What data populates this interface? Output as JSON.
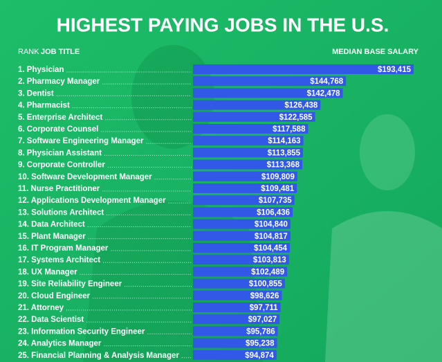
{
  "chart_data": {
    "type": "bar",
    "orientation": "horizontal",
    "title": "HIGHEST PAYING JOBS IN THE U.S.",
    "rank_header": "RANK",
    "category_header": "JOB TITLE",
    "value_header": "MEDIAN BASE SALARY",
    "categories": [
      "1. Physician",
      "2. Pharmacy Manager",
      "3. Dentist",
      "4. Pharmacist",
      "5. Enterprise Architect",
      "6. Corporate Counsel",
      "7. Software Engineering Manager",
      "8. Physician Assistant",
      "9. Corporate Controller",
      "10. Software Development Manager",
      "11. Nurse Practitioner",
      "12. Applications Development Manager",
      "13. Solutions Architect",
      "14. Data Architect",
      "15. Plant Manager",
      "16. IT Program Manager",
      "17. Systems Architect",
      "18. UX Manager",
      "19. Site Reliability Engineer",
      "20. Cloud Engineer",
      "21. Attorney",
      "22. Data Scientist",
      "23. Information Security Engineer",
      "24. Analytics Manager",
      "25. Financial Planning & Analysis Manager"
    ],
    "values": [
      193415,
      144768,
      142478,
      126438,
      122585,
      117588,
      114163,
      113855,
      113368,
      109809,
      109481,
      107735,
      106436,
      104840,
      104817,
      104454,
      103813,
      102489,
      100855,
      98626,
      97711,
      97027,
      95786,
      95238,
      94874
    ],
    "value_labels": [
      "$193,415",
      "$144,768",
      "$142,478",
      "$126,438",
      "$122,585",
      "$117,588",
      "$114,163",
      "$113,855",
      "$113,368",
      "$109,809",
      "$109,481",
      "$107,735",
      "$106,436",
      "$104,840",
      "$104,817",
      "$104,454",
      "$103,813",
      "$102,489",
      "$100,855",
      "$98,626",
      "$97,711",
      "$97,027",
      "$95,786",
      "$95,238",
      "$94,874"
    ],
    "color": "#3158e6"
  }
}
